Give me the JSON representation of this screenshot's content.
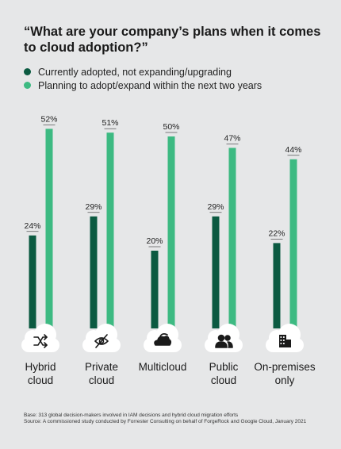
{
  "chart_data": {
    "type": "bar",
    "title": "“What are your company’s plans when it comes to cloud adoption?”",
    "categories": [
      {
        "lines": [
          "Hybrid",
          "cloud"
        ],
        "icon": "shuffle-icon"
      },
      {
        "lines": [
          "Private",
          "cloud"
        ],
        "icon": "eye-off-icon"
      },
      {
        "lines": [
          "Multicloud"
        ],
        "icon": "clouds-icon"
      },
      {
        "lines": [
          "Public",
          "cloud"
        ],
        "icon": "people-icon"
      },
      {
        "lines": [
          "On-premises",
          "only"
        ],
        "icon": "building-icon"
      }
    ],
    "series": [
      {
        "name": "Currently adopted, not expanding/upgrading",
        "values": [
          24,
          29,
          20,
          29,
          22
        ],
        "color": "#0b5a41"
      },
      {
        "name": "Planning to adopt/expand within the next two years",
        "values": [
          52,
          51,
          50,
          47,
          44
        ],
        "color": "#3dba82"
      }
    ],
    "value_suffix": "%",
    "ylim": [
      0,
      60
    ],
    "legend_position": "top-left",
    "grid": false
  },
  "footnote": {
    "base": "Base: 313 global decision-makers involved in IAM decisions and hybrid cloud migration efforts",
    "source": "Source: A commissioned study conducted by Forrester Consulting on behalf of ForgeRock and Google Cloud, January 2021"
  },
  "colors": {
    "background": "#e6e7e8",
    "cloud_fill": "#ffffff",
    "icon": "#1a1a1a"
  }
}
